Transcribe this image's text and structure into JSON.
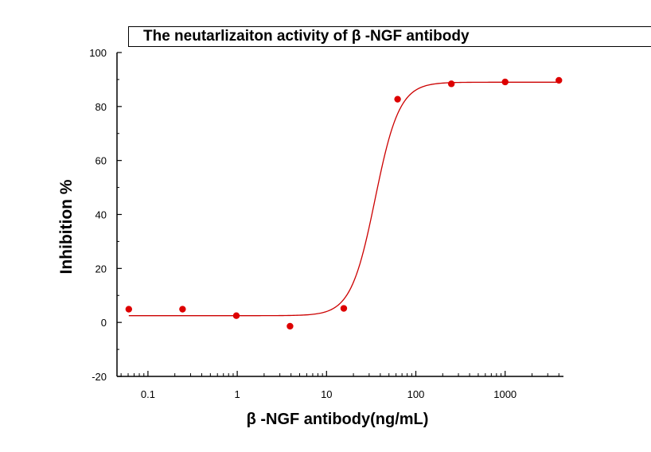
{
  "chart_data": {
    "type": "scatter",
    "title": "The neutarlizaiton activity of β -NGF antibody",
    "xlabel": "β -NGF antibody(ng/mL)",
    "ylabel": "Inhibition %",
    "x_scale": "log",
    "xlim": [
      0.045,
      4500
    ],
    "ylim": [
      -20,
      100
    ],
    "x_ticks": [
      0.1,
      1,
      10,
      100,
      1000
    ],
    "x_tick_labels": [
      "0.1",
      "1",
      "10",
      "100",
      "1000"
    ],
    "y_ticks": [
      -20,
      0,
      20,
      40,
      60,
      80,
      100
    ],
    "y_tick_labels": [
      "-20",
      "0",
      "20",
      "40",
      "60",
      "80",
      "100"
    ],
    "grid": false,
    "series": [
      {
        "type": "scatter",
        "x": [
          0.061,
          0.244,
          0.977,
          3.9,
          15.6,
          62.5,
          250,
          1000,
          4000
        ],
        "y": [
          4.9,
          4.9,
          2.5,
          -1.4,
          5.2,
          82.7,
          88.4,
          89.1,
          89.7
        ]
      },
      {
        "type": "line",
        "fit": "logistic",
        "bottom": 2.5,
        "top": 89.0,
        "ec50": 35,
        "hill": 3.2,
        "x_range": [
          0.061,
          4000
        ]
      }
    ],
    "colors": {
      "points": "#dd0000",
      "curve": "#cc0000",
      "axes": "#000000"
    }
  }
}
